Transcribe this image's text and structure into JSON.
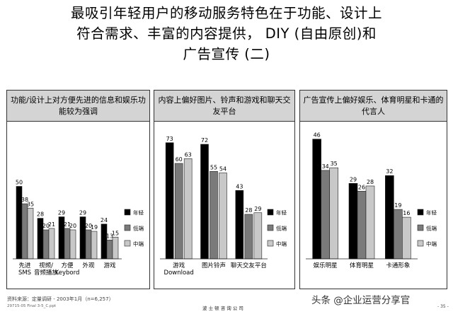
{
  "title_lines": [
    "最吸引年轻用户的移动服务特色在于功能、设计上",
    "符合需求、丰富的内容提供， DIY (自由原创)和",
    "广告宣传 (二)"
  ],
  "footer": {
    "source": "资料来源：定量调研 - 2003年1月（n=6,257）",
    "file": "29715-05 Final 3-5_C.ppt",
    "company": "波 士 顿 咨 询 公 司",
    "page": "- 35 -",
    "watermark": "头条 @企业运营分享官"
  },
  "colors": {
    "年轻": "#000000",
    "低端": "#7a7a7a",
    "中端": "#c8c8c8"
  },
  "chart_data": [
    {
      "type": "bar",
      "title": "功能/设计上对方便先进的信息和娱乐功能较为强调",
      "categories": [
        "先进 SMS",
        "视频/音频播放",
        "方便 Keybord",
        "外观",
        "游戏"
      ],
      "series": [
        {
          "name": "年轻",
          "values": [
            50,
            28,
            29,
            29,
            24
          ]
        },
        {
          "name": "低端",
          "values": [
            38,
            20,
            21,
            20,
            13
          ]
        },
        {
          "name": "中端",
          "values": [
            35,
            21,
            20,
            19,
            15
          ]
        }
      ],
      "legend_position": "right",
      "ylim": [
        0,
        80
      ]
    },
    {
      "type": "bar",
      "title": "内容上偏好图片、铃声和游戏和聊天交友平台",
      "categories": [
        "游戏 Download",
        "图片铃声",
        "聊天交友平台"
      ],
      "series": [
        {
          "name": "年轻",
          "values": [
            73,
            72,
            43
          ]
        },
        {
          "name": "低端",
          "values": [
            60,
            55,
            28
          ]
        },
        {
          "name": "中端",
          "values": [
            63,
            54,
            29
          ]
        }
      ],
      "legend_position": "right",
      "ylim": [
        0,
        80
      ]
    },
    {
      "type": "bar",
      "title": "广告宣传上偏好娱乐、体育明星和卡通的代言人",
      "categories": [
        "娱乐明星",
        "体育明星",
        "卡通形象"
      ],
      "series": [
        {
          "name": "年轻",
          "values": [
            46,
            29,
            32
          ]
        },
        {
          "name": "低端",
          "values": [
            34,
            26,
            19
          ]
        },
        {
          "name": "中端",
          "values": [
            35,
            28,
            16
          ]
        }
      ],
      "legend_position": "right",
      "ylim": [
        0,
        50
      ]
    }
  ]
}
